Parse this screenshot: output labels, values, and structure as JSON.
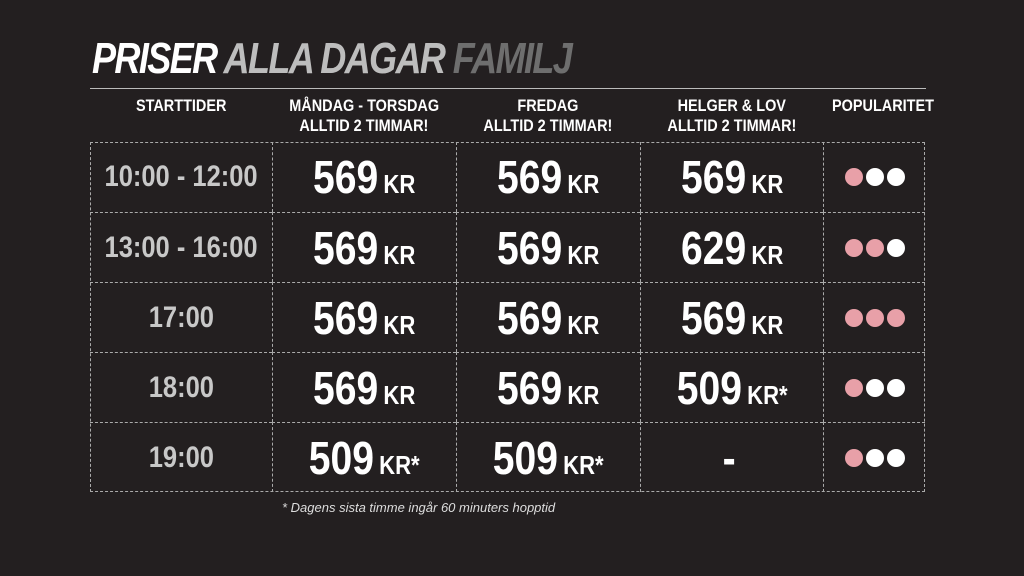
{
  "title": {
    "part1": "PRISER",
    "part2": "ALLA DAGAR",
    "part3": "FAMILJ"
  },
  "headers": [
    {
      "line1": "STARTTIDER",
      "line2": ""
    },
    {
      "line1": "MÅNDAG - TORSDAG",
      "line2": "ALLTID 2 TIMMAR!"
    },
    {
      "line1": "FREDAG",
      "line2": "ALLTID 2 TIMMAR!"
    },
    {
      "line1": "HELGER & LOV",
      "line2": "ALLTID 2 TIMMAR!"
    },
    {
      "line1": "POPULARITET",
      "line2": ""
    }
  ],
  "rows": [
    {
      "time": "10:00 - 12:00",
      "prices": [
        {
          "n": "569",
          "k": "KR"
        },
        {
          "n": "569",
          "k": "KR"
        },
        {
          "n": "569",
          "k": "KR"
        }
      ],
      "popularity": 1
    },
    {
      "time": "13:00 - 16:00",
      "prices": [
        {
          "n": "569",
          "k": "KR"
        },
        {
          "n": "569",
          "k": "KR"
        },
        {
          "n": "629",
          "k": "KR"
        }
      ],
      "popularity": 2
    },
    {
      "time": "17:00",
      "prices": [
        {
          "n": "569",
          "k": "KR"
        },
        {
          "n": "569",
          "k": "KR"
        },
        {
          "n": "569",
          "k": "KR"
        }
      ],
      "popularity": 3
    },
    {
      "time": "18:00",
      "prices": [
        {
          "n": "569",
          "k": "KR"
        },
        {
          "n": "569",
          "k": "KR"
        },
        {
          "n": "509",
          "k": "KR*"
        }
      ],
      "popularity": 1
    },
    {
      "time": "19:00",
      "prices": [
        {
          "n": "509",
          "k": "KR*"
        },
        {
          "n": "509",
          "k": "KR*"
        },
        {
          "n": "-",
          "k": ""
        }
      ],
      "popularity": 1
    }
  ],
  "popularity_max": 3,
  "colors": {
    "background": "#231f20",
    "dot_active": "#e8a0a8",
    "dot_inactive": "#ffffff"
  },
  "footnote": "* Dagens sista timme ingår 60 minuters hopptid"
}
